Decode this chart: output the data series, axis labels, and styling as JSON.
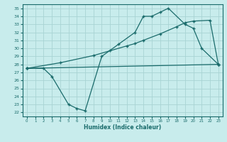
{
  "xlabel": "Humidex (Indice chaleur)",
  "bg_color": "#c8ecec",
  "grid_color": "#a8d4d4",
  "line_color": "#1a6b6b",
  "xlim": [
    -0.5,
    23.5
  ],
  "ylim": [
    21.5,
    35.5
  ],
  "xticks": [
    0,
    1,
    2,
    3,
    4,
    5,
    6,
    7,
    8,
    9,
    10,
    11,
    12,
    13,
    14,
    15,
    16,
    17,
    18,
    19,
    20,
    21,
    22,
    23
  ],
  "yticks": [
    22,
    23,
    24,
    25,
    26,
    27,
    28,
    29,
    30,
    31,
    32,
    33,
    34,
    35
  ],
  "line1_x": [
    0,
    2,
    3,
    5,
    6,
    7,
    9,
    11,
    13,
    14,
    15,
    16,
    17,
    19,
    20,
    21,
    23
  ],
  "line1_y": [
    27.5,
    27.5,
    26.5,
    23.0,
    22.5,
    22.2,
    29.0,
    30.5,
    32.0,
    34.0,
    34.0,
    34.5,
    35.0,
    33.0,
    32.5,
    30.0,
    28.0
  ],
  "line2_x": [
    0,
    4,
    8,
    10,
    12,
    13,
    14,
    16,
    18,
    19,
    20,
    22,
    23
  ],
  "line2_y": [
    27.5,
    28.2,
    29.1,
    29.7,
    30.3,
    30.6,
    31.0,
    31.8,
    32.7,
    33.2,
    33.4,
    33.5,
    28.0
  ],
  "line3_x": [
    0,
    23
  ],
  "line3_y": [
    27.5,
    28.0
  ]
}
